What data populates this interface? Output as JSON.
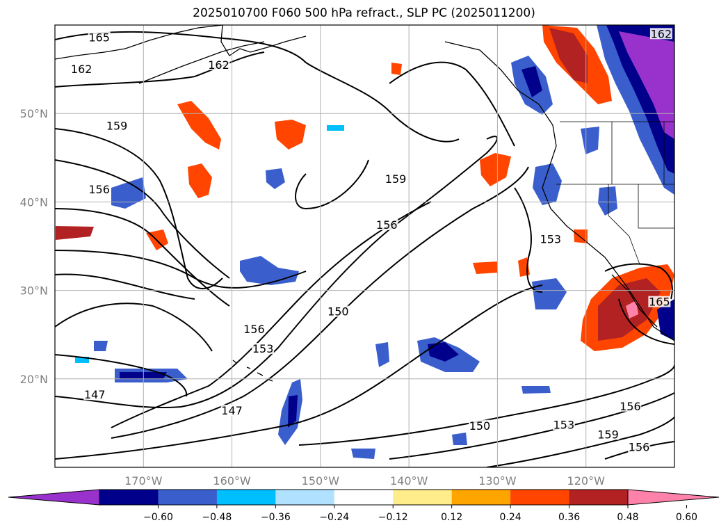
{
  "title": "2025010700 F060 500 hPa refract., SLP PC (2025011200)",
  "map": {
    "extent": {
      "lon_min": -180,
      "lon_max": -110,
      "lat_min": 10,
      "lat_max": 60
    },
    "lat_ticks": [
      {
        "value": 50,
        "label": "50°N"
      },
      {
        "value": 40,
        "label": "40°N"
      },
      {
        "value": 30,
        "label": "30°N"
      },
      {
        "value": 20,
        "label": "20°N"
      }
    ],
    "lon_ticks": [
      {
        "value": -170,
        "label": "170°W"
      },
      {
        "value": -160,
        "label": "160°W"
      },
      {
        "value": -150,
        "label": "150°W"
      },
      {
        "value": -140,
        "label": "140°W"
      },
      {
        "value": -130,
        "label": "130°W"
      },
      {
        "value": -120,
        "label": "120°W"
      }
    ],
    "grid": true,
    "contour_labels": [
      {
        "text": "165",
        "lon": -175,
        "lat": 58.4
      },
      {
        "text": "162",
        "lon": -161.5,
        "lat": 55.3
      },
      {
        "text": "162",
        "lon": -177,
        "lat": 54.8
      },
      {
        "text": "159",
        "lon": -173,
        "lat": 48.4
      },
      {
        "text": "156",
        "lon": -175,
        "lat": 41.2
      },
      {
        "text": "159",
        "lon": -141.5,
        "lat": 42.4
      },
      {
        "text": "156",
        "lon": -142.5,
        "lat": 37.2
      },
      {
        "text": "153",
        "lon": -124,
        "lat": 35.6
      },
      {
        "text": "150",
        "lon": -148,
        "lat": 27.4
      },
      {
        "text": "156",
        "lon": -157.5,
        "lat": 25.4
      },
      {
        "text": "153",
        "lon": -156.5,
        "lat": 23.2
      },
      {
        "text": "147",
        "lon": -175.5,
        "lat": 18.0
      },
      {
        "text": "147",
        "lon": -160,
        "lat": 16.2
      },
      {
        "text": "150",
        "lon": -132,
        "lat": 14.5
      },
      {
        "text": "153",
        "lon": -122.5,
        "lat": 14.6
      },
      {
        "text": "156",
        "lon": -115,
        "lat": 16.7
      },
      {
        "text": "159",
        "lon": -117.5,
        "lat": 13.5
      },
      {
        "text": "156",
        "lon": -114,
        "lat": 12.1
      },
      {
        "text": "162",
        "lon": -111.5,
        "lat": 58.8
      },
      {
        "text": "165",
        "lon": -111.7,
        "lat": 28.5
      }
    ]
  },
  "colorbar": {
    "levels": [
      -0.6,
      -0.48,
      -0.36,
      -0.24,
      -0.12,
      0.12,
      0.24,
      0.36,
      0.48,
      0.6
    ],
    "tick_labels": [
      "−0.60",
      "−0.48",
      "−0.36",
      "−0.24",
      "−0.12",
      "0.12",
      "0.24",
      "0.36",
      "0.48",
      "0.60"
    ],
    "colors": [
      "#9932cc",
      "#00008b",
      "#3a5fcd",
      "#00bfff",
      "#b0e2ff",
      "#ffffff",
      "#ffec8b",
      "#ffa500",
      "#ff4500",
      "#b22222",
      "#ff82ab"
    ],
    "extend": "both"
  }
}
